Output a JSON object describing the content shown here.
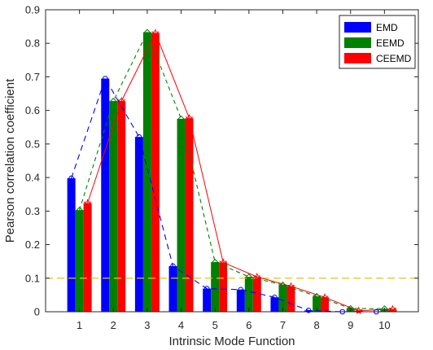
{
  "chart_data": {
    "type": "bar",
    "xlabel": "Intrinsic Mode Function",
    "ylabel": "Pearson correlation coefficient",
    "categories": [
      "1",
      "2",
      "3",
      "4",
      "5",
      "6",
      "7",
      "8",
      "9",
      "10"
    ],
    "ylim": [
      0,
      0.9
    ],
    "yticks": [
      "0",
      "0.1",
      "0.2",
      "0.3",
      "0.4",
      "0.5",
      "0.6",
      "0.7",
      "0.8",
      "0.9"
    ],
    "series": [
      {
        "name": "EMD",
        "color": "#0000ff",
        "values": [
          0.398,
          0.695,
          0.521,
          0.136,
          0.069,
          0.066,
          0.043,
          0.004,
          0.0,
          0.0
        ],
        "line_style": "dashed",
        "marker": "circle"
      },
      {
        "name": "EEMD",
        "color": "#008000",
        "values": [
          0.303,
          0.628,
          0.833,
          0.575,
          0.148,
          0.104,
          0.08,
          0.046,
          0.01,
          0.009
        ],
        "line_style": "dashed",
        "marker": "diamond"
      },
      {
        "name": "CEEMD",
        "color": "#ff0000",
        "values": [
          0.324,
          0.628,
          0.831,
          0.577,
          0.147,
          0.104,
          0.076,
          0.043,
          0.003,
          0.008
        ],
        "line_style": "solid",
        "marker": "star"
      }
    ],
    "reference_line": {
      "value": 0.1,
      "color": "#e5c419",
      "style": "dashed"
    },
    "grid": false,
    "legend_position": "top-right"
  }
}
